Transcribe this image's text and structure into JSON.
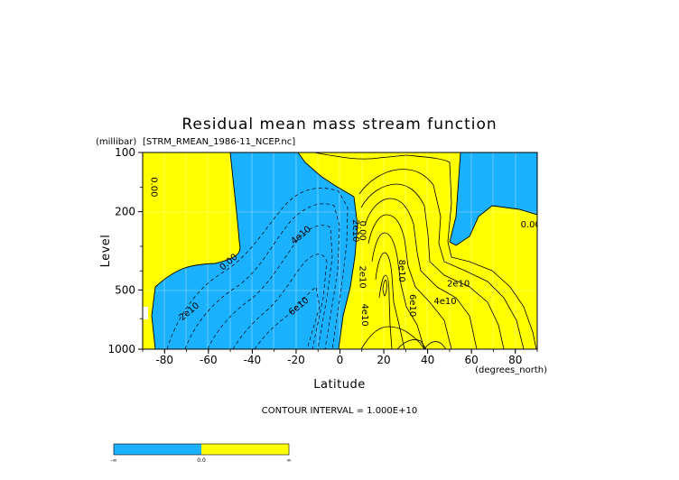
{
  "chart_data": {
    "type": "contour",
    "title": "Residual mean mass stream function",
    "subtitle": "[STRM_RMEAN_1986-11_NCEP.nc]",
    "xlabel": "Latitude",
    "x_units": "(degrees_north)",
    "ylabel": "Level",
    "y_units": "(millibar)",
    "xlim": [
      -90,
      90
    ],
    "ylim": [
      1000,
      100
    ],
    "y_scale": "log",
    "x_ticks": [
      -80,
      -60,
      -40,
      -20,
      0,
      20,
      40,
      60,
      80
    ],
    "y_ticks": [
      100,
      200,
      500,
      1000
    ],
    "grid": true,
    "contour_interval_text": "CONTOUR INTERVAL = 1.000E+10",
    "contour_labels": [
      {
        "text": "0.00",
        "x": -86,
        "y": 150
      },
      {
        "text": "0.00",
        "x": -50,
        "y": 370
      },
      {
        "text": "2e10",
        "x": -68,
        "y": 660
      },
      {
        "text": "4e10",
        "x": -17,
        "y": 270
      },
      {
        "text": "6e10",
        "x": -18,
        "y": 620
      },
      {
        "text": "2e10",
        "x": 6,
        "y": 250
      },
      {
        "text": "0.00",
        "x": 9,
        "y": 250
      },
      {
        "text": "2e10",
        "x": 9,
        "y": 430
      },
      {
        "text": "4e10",
        "x": 10,
        "y": 670
      },
      {
        "text": "8e10",
        "x": 27,
        "y": 400
      },
      {
        "text": "6e10",
        "x": 32,
        "y": 600
      },
      {
        "text": "4e10",
        "x": 48,
        "y": 590
      },
      {
        "text": "2e10",
        "x": 54,
        "y": 480
      },
      {
        "text": "0.00",
        "x": 87,
        "y": 240
      }
    ],
    "fill_colors": {
      "negative": "#1ab2ff",
      "positive": "#ffff00"
    },
    "colorbar": {
      "labels": [
        "-∞",
        "0.0",
        "∞"
      ]
    }
  }
}
